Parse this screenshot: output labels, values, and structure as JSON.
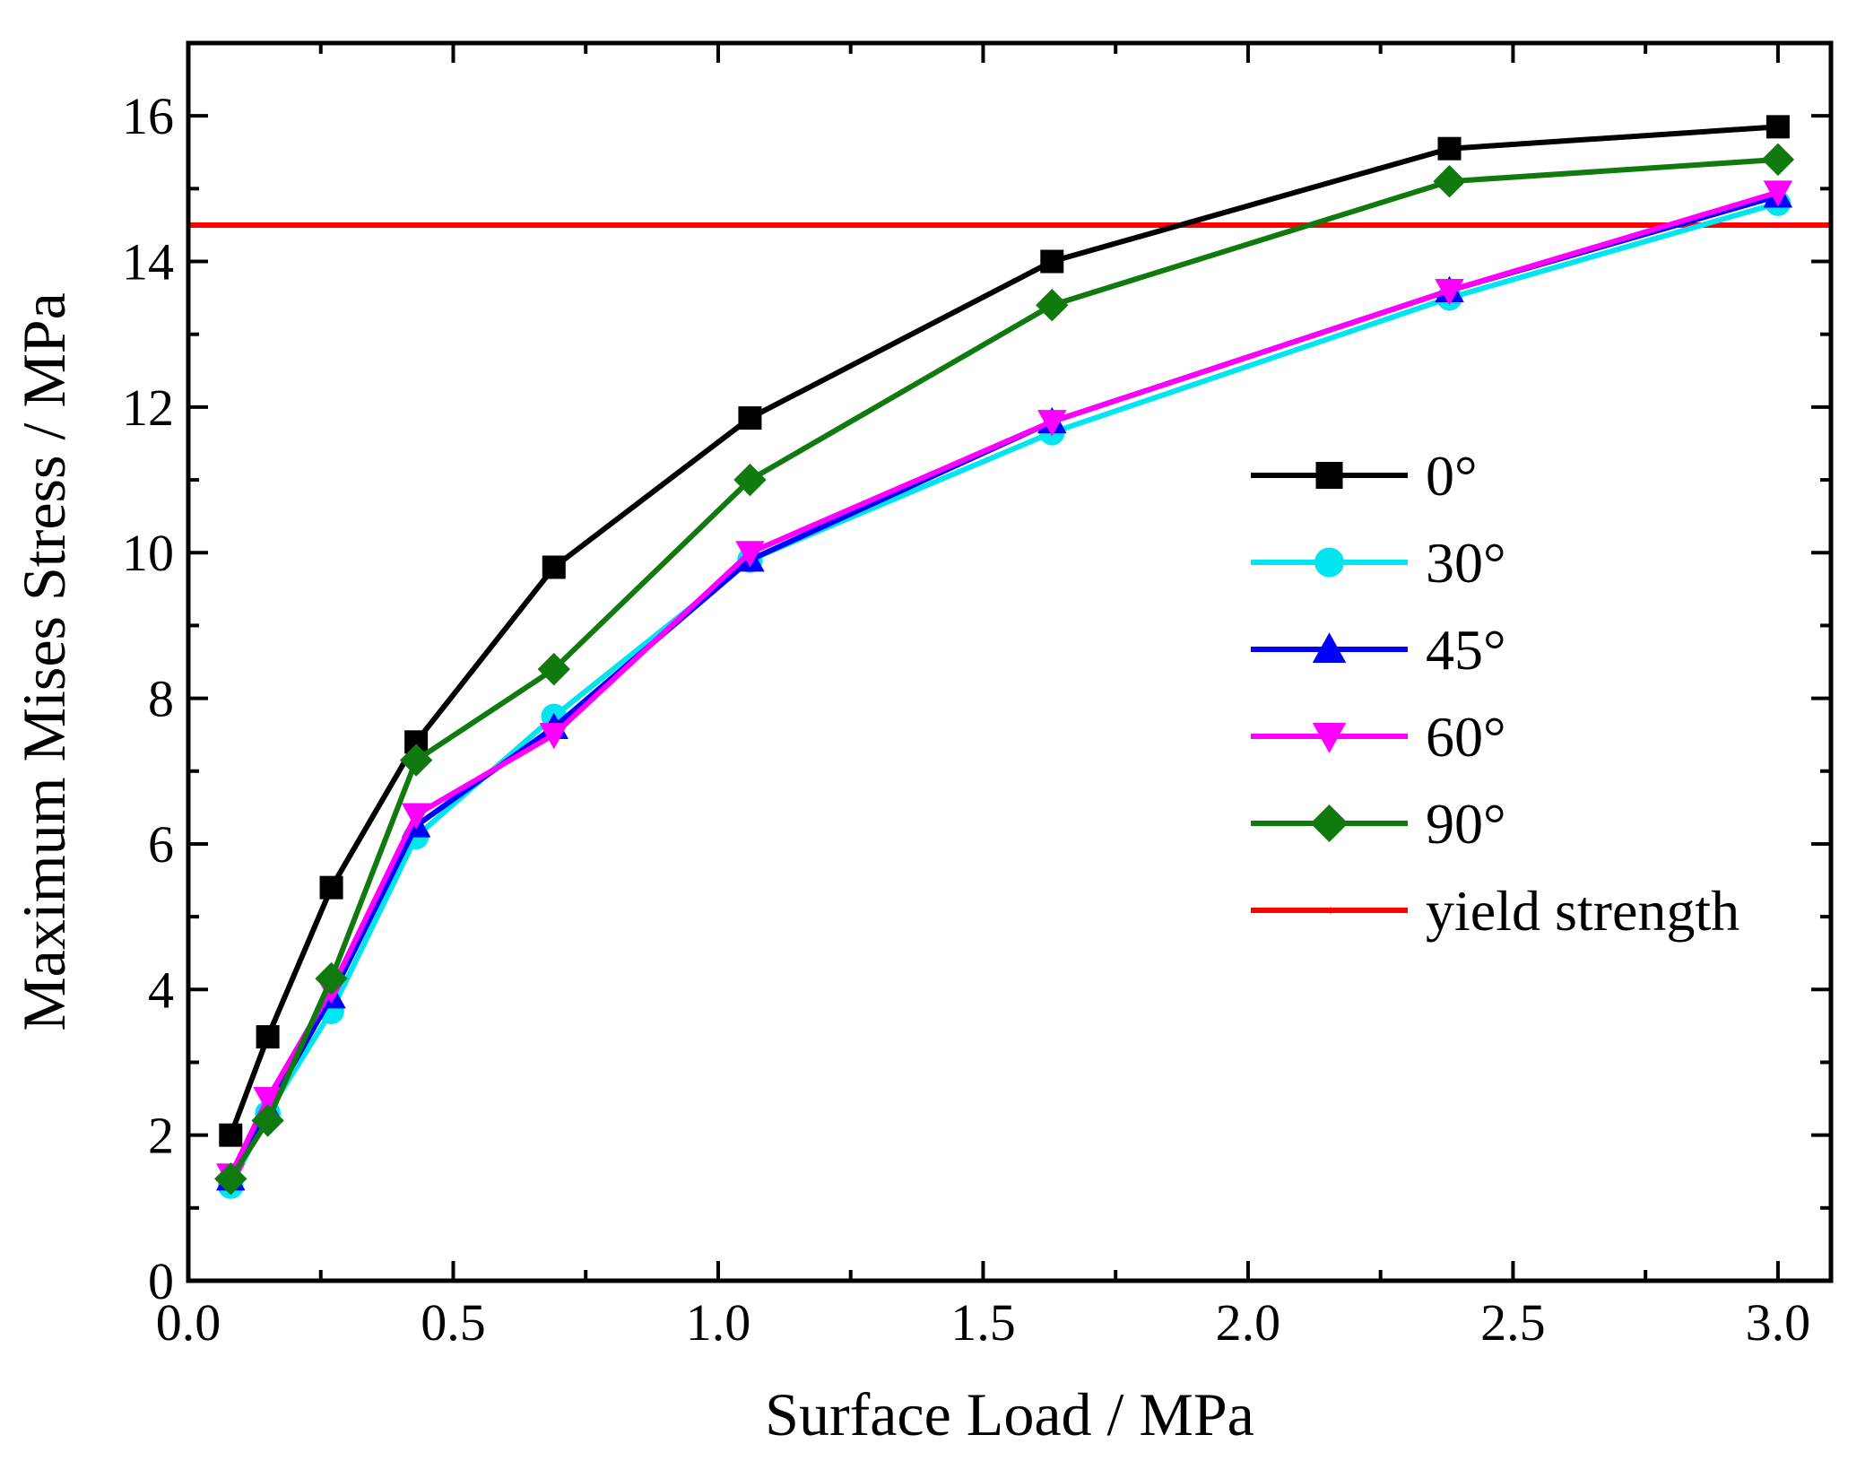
{
  "chart_data": {
    "type": "line",
    "xlabel": "Surface  Load / MPa",
    "ylabel": "Maximum Mises Stress / MPa",
    "xlim": [
      0.0,
      3.1
    ],
    "ylim": [
      0,
      17
    ],
    "x_ticks": [
      0.0,
      0.5,
      1.0,
      1.5,
      2.0,
      2.5,
      3.0
    ],
    "x_tick_labels": [
      "0.0",
      "0.5",
      "1.0",
      "1.5",
      "2.0",
      "2.5",
      "3.0"
    ],
    "y_ticks": [
      0,
      2,
      4,
      6,
      8,
      10,
      12,
      14,
      16
    ],
    "y_tick_labels": [
      "0",
      "2",
      "4",
      "6",
      "8",
      "10",
      "12",
      "14",
      "16"
    ],
    "grid": false,
    "legend_position": "right",
    "series": [
      {
        "name": "0°",
        "color": "#000000",
        "marker": "square",
        "x": [
          0.08,
          0.15,
          0.27,
          0.43,
          0.69,
          1.06,
          1.63,
          2.38,
          3.0
        ],
        "y": [
          2.0,
          3.35,
          5.4,
          7.4,
          9.8,
          11.85,
          14.0,
          15.55,
          15.85
        ]
      },
      {
        "name": "30°",
        "color": "#00e6f0",
        "marker": "circle",
        "x": [
          0.08,
          0.15,
          0.27,
          0.43,
          0.69,
          1.06,
          1.63,
          2.38,
          3.0
        ],
        "y": [
          1.3,
          2.3,
          3.7,
          6.1,
          7.75,
          9.9,
          11.65,
          13.5,
          14.8
        ]
      },
      {
        "name": "45°",
        "color": "#0000ff",
        "marker": "triangle-up",
        "x": [
          0.08,
          0.15,
          0.27,
          0.43,
          0.69,
          1.06,
          1.63,
          2.38,
          3.0
        ],
        "y": [
          1.4,
          2.35,
          3.9,
          6.25,
          7.6,
          9.9,
          11.8,
          13.6,
          14.9
        ]
      },
      {
        "name": "60°",
        "color": "#ff00ff",
        "marker": "triangle-down",
        "x": [
          0.08,
          0.15,
          0.27,
          0.43,
          0.69,
          1.06,
          1.63,
          2.38,
          3.0
        ],
        "y": [
          1.45,
          2.5,
          4.0,
          6.4,
          7.5,
          10.0,
          11.8,
          13.6,
          14.95
        ]
      },
      {
        "name": "90°",
        "color": "#117a0f",
        "marker": "diamond",
        "x": [
          0.08,
          0.15,
          0.27,
          0.43,
          0.69,
          1.06,
          1.63,
          2.38,
          3.0
        ],
        "y": [
          1.4,
          2.2,
          4.15,
          7.15,
          8.4,
          11.0,
          13.4,
          15.1,
          15.4
        ]
      }
    ],
    "reference_line": {
      "name": "yield strength",
      "color": "#ff0000",
      "y": 14.5
    }
  }
}
